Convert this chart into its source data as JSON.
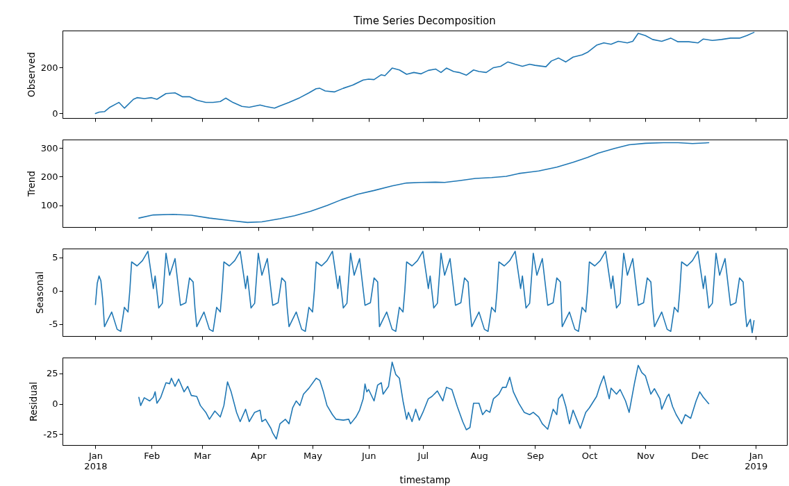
{
  "chart_data": [
    {
      "type": "line",
      "title": "Time Series Decomposition",
      "ylabel": "Observed",
      "tick_labels": "y",
      "xlim": [
        "2017-12-13T19:12",
        "2019-01-18T04:48"
      ],
      "xticks": [
        {
          "value": "2018-01-01",
          "label": null
        },
        {
          "value": "2018-02-01",
          "label": null
        },
        {
          "value": "2018-03-01",
          "label": null
        },
        {
          "value": "2018-04-01",
          "label": null
        },
        {
          "value": "2018-05-01",
          "label": null
        },
        {
          "value": "2018-06-01",
          "label": null
        },
        {
          "value": "2018-07-01",
          "label": null
        },
        {
          "value": "2018-08-01",
          "label": null
        },
        {
          "value": "2018-09-01",
          "label": null
        },
        {
          "value": "2018-10-01",
          "label": null
        },
        {
          "value": "2018-11-01",
          "label": null
        },
        {
          "value": "2018-12-01",
          "label": null
        },
        {
          "value": "2019-01-01",
          "label": null
        }
      ],
      "ylim": [
        -20,
        362
      ],
      "yticks": [
        0,
        200
      ],
      "x": [
        "2018-01-01",
        "2018-01-03",
        "2018-01-06",
        "2018-01-09",
        "2018-01-13",
        "2018-01-14",
        "2018-01-17",
        "2018-01-22",
        "2018-01-24",
        "2018-01-28",
        "2018-02-01",
        "2018-02-04",
        "2018-02-09",
        "2018-02-14",
        "2018-02-18",
        "2018-02-22",
        "2018-02-26",
        "2018-03-03",
        "2018-03-07",
        "2018-03-11",
        "2018-03-14",
        "2018-03-18",
        "2018-03-23",
        "2018-03-27",
        "2018-04-02",
        "2018-04-05",
        "2018-04-10",
        "2018-04-13",
        "2018-04-18",
        "2018-04-24",
        "2018-04-29",
        "2018-05-03",
        "2018-05-05",
        "2018-05-08",
        "2018-05-13",
        "2018-05-18",
        "2018-05-23",
        "2018-05-29",
        "2018-06-01",
        "2018-06-04",
        "2018-06-08",
        "2018-06-10",
        "2018-06-14",
        "2018-06-18",
        "2018-06-22",
        "2018-06-26",
        "2018-06-30",
        "2018-07-04",
        "2018-07-08",
        "2018-07-11",
        "2018-07-14",
        "2018-07-18",
        "2018-07-21",
        "2018-07-25",
        "2018-07-29",
        "2018-08-01",
        "2018-08-05",
        "2018-08-09",
        "2018-08-13",
        "2018-08-17",
        "2018-08-21",
        "2018-08-25",
        "2018-08-29",
        "2018-09-01",
        "2018-09-07",
        "2018-09-10",
        "2018-09-14",
        "2018-09-18",
        "2018-09-22",
        "2018-09-27",
        "2018-09-30",
        "2018-10-05",
        "2018-10-09",
        "2018-10-13",
        "2018-10-17",
        "2018-10-22",
        "2018-10-25",
        "2018-10-28",
        "2018-11-01",
        "2018-11-05",
        "2018-11-10",
        "2018-11-15",
        "2018-11-19",
        "2018-11-25",
        "2018-11-30",
        "2018-12-03",
        "2018-12-08",
        "2018-12-13",
        "2018-12-18",
        "2018-12-23",
        "2018-12-27",
        "2018-12-31"
      ],
      "series": [
        {
          "color": "#1f77b4",
          "values": [
            0,
            6,
            8,
            27,
            44,
            48,
            23,
            62,
            69,
            65,
            69,
            62,
            87,
            90,
            73,
            73,
            58,
            48,
            48,
            52,
            67,
            48,
            31,
            27,
            37,
            31,
            23,
            33,
            48,
            69,
            90,
            108,
            110,
            98,
            94,
            110,
            123,
            146,
            150,
            148,
            169,
            165,
            198,
            190,
            171,
            179,
            173,
            188,
            194,
            179,
            198,
            183,
            179,
            167,
            190,
            183,
            179,
            200,
            206,
            225,
            215,
            206,
            215,
            210,
            204,
            229,
            242,
            225,
            246,
            256,
            267,
            298,
            308,
            302,
            315,
            308,
            315,
            350,
            340,
            323,
            315,
            329,
            313,
            313,
            308,
            325,
            319,
            323,
            329,
            329,
            340,
            354
          ]
        }
      ]
    },
    {
      "type": "line",
      "ylabel": "Trend",
      "tick_labels": "y",
      "xlim": [
        "2017-12-13T19:12",
        "2019-01-18T04:48"
      ],
      "xticks": [
        {
          "value": "2018-01-01",
          "label": null
        },
        {
          "value": "2018-02-01",
          "label": null
        },
        {
          "value": "2018-03-01",
          "label": null
        },
        {
          "value": "2018-04-01",
          "label": null
        },
        {
          "value": "2018-05-01",
          "label": null
        },
        {
          "value": "2018-06-01",
          "label": null
        },
        {
          "value": "2018-07-01",
          "label": null
        },
        {
          "value": "2018-08-01",
          "label": null
        },
        {
          "value": "2018-09-01",
          "label": null
        },
        {
          "value": "2018-10-01",
          "label": null
        },
        {
          "value": "2018-11-01",
          "label": null
        },
        {
          "value": "2018-12-01",
          "label": null
        },
        {
          "value": "2019-01-01",
          "label": null
        }
      ],
      "ylim": [
        25,
        329
      ],
      "yticks": [
        100,
        200,
        300
      ],
      "x": [
        "2018-01-25",
        "2018-02-02",
        "2018-02-13",
        "2018-02-23",
        "2018-03-05",
        "2018-03-16",
        "2018-03-26",
        "2018-04-03",
        "2018-04-13",
        "2018-04-21",
        "2018-04-30",
        "2018-05-09",
        "2018-05-17",
        "2018-05-26",
        "2018-06-04",
        "2018-06-14",
        "2018-06-22",
        "2018-06-30",
        "2018-07-08",
        "2018-07-13",
        "2018-07-21",
        "2018-07-30",
        "2018-08-08",
        "2018-08-16",
        "2018-08-23",
        "2018-09-03",
        "2018-09-13",
        "2018-09-22",
        "2018-09-30",
        "2018-10-06",
        "2018-10-15",
        "2018-10-23",
        "2018-11-01",
        "2018-11-11",
        "2018-11-19",
        "2018-11-27",
        "2018-12-06"
      ],
      "series": [
        {
          "color": "#1f77b4",
          "values": [
            56,
            67,
            69,
            66,
            56,
            48,
            41,
            43,
            54,
            64,
            80,
            100,
            120,
            139,
            152,
            168,
            178,
            180,
            181,
            180,
            186,
            194,
            197,
            201,
            211,
            220,
            233,
            250,
            267,
            282,
            298,
            311,
            316,
            318,
            318,
            315,
            318
          ]
        }
      ]
    },
    {
      "type": "line",
      "ylabel": "Seasonal",
      "tick_labels": "y",
      "xlim": [
        "2017-12-13T19:12",
        "2019-01-18T04:48"
      ],
      "xticks": [
        {
          "value": "2018-01-01",
          "label": null
        },
        {
          "value": "2018-02-01",
          "label": null
        },
        {
          "value": "2018-03-01",
          "label": null
        },
        {
          "value": "2018-04-01",
          "label": null
        },
        {
          "value": "2018-05-01",
          "label": null
        },
        {
          "value": "2018-06-01",
          "label": null
        },
        {
          "value": "2018-07-01",
          "label": null
        },
        {
          "value": "2018-08-01",
          "label": null
        },
        {
          "value": "2018-09-01",
          "label": null
        },
        {
          "value": "2018-10-01",
          "label": null
        },
        {
          "value": "2018-11-01",
          "label": null
        },
        {
          "value": "2018-12-01",
          "label": null
        },
        {
          "value": "2019-01-01",
          "label": null
        }
      ],
      "ylim": [
        -6.8,
        6.3
      ],
      "yticks": [
        -5,
        0,
        5
      ],
      "x": [
        "2018-01-01",
        "2018-01-02",
        "2018-01-03",
        "2018-01-04",
        "2018-01-05",
        "2018-01-06",
        "2018-01-08",
        "2018-01-10",
        "2018-01-13",
        "2018-01-15",
        "2018-01-17",
        "2018-01-19",
        "2018-01-20",
        "2018-01-21",
        "2018-01-24",
        "2018-01-27",
        "2018-01-30",
        "2018-02-02",
        "2018-02-03",
        "2018-02-05",
        "2018-02-07",
        "2018-02-09",
        "2018-02-11",
        "2018-02-14",
        "2018-02-17",
        "2018-02-20",
        "2018-02-22",
        "2018-02-24",
        "2018-02-25",
        "2018-02-26",
        "2018-02-28",
        "2018-03-02",
        "2018-03-05",
        "2018-03-07",
        "2018-03-09",
        "2018-03-11",
        "2018-03-12",
        "2018-03-13",
        "2018-03-16",
        "2018-03-19",
        "2018-03-22",
        "2018-03-25",
        "2018-03-26",
        "2018-03-28",
        "2018-03-30",
        "2018-04-01",
        "2018-04-03",
        "2018-04-06",
        "2018-04-09",
        "2018-04-12",
        "2018-04-14",
        "2018-04-16",
        "2018-04-17",
        "2018-04-18",
        "2018-04-20",
        "2018-04-22",
        "2018-04-25",
        "2018-04-27",
        "2018-04-29",
        "2018-05-01",
        "2018-05-02",
        "2018-05-03",
        "2018-05-06",
        "2018-05-09",
        "2018-05-12",
        "2018-05-15",
        "2018-05-16",
        "2018-05-18",
        "2018-05-20",
        "2018-05-22",
        "2018-05-24",
        "2018-05-27",
        "2018-05-30",
        "2018-06-02",
        "2018-06-04",
        "2018-06-06",
        "2018-06-07",
        "2018-06-09",
        "2018-06-11",
        "2018-06-14",
        "2018-06-16",
        "2018-06-18",
        "2018-06-20",
        "2018-06-21",
        "2018-06-22",
        "2018-06-25",
        "2018-06-28",
        "2018-07-01",
        "2018-07-04",
        "2018-07-05",
        "2018-07-07",
        "2018-07-09",
        "2018-07-11",
        "2018-07-13",
        "2018-07-16",
        "2018-07-19",
        "2018-07-22",
        "2018-07-24",
        "2018-07-26",
        "2018-07-27",
        "2018-07-28",
        "2018-07-30",
        "2018-08-01",
        "2018-08-04",
        "2018-08-06",
        "2018-08-08",
        "2018-08-10",
        "2018-08-11",
        "2018-08-12",
        "2018-08-15",
        "2018-08-18",
        "2018-08-21",
        "2018-08-24",
        "2018-08-25",
        "2018-08-27",
        "2018-08-29",
        "2018-08-31",
        "2018-09-02",
        "2018-09-05",
        "2018-09-08",
        "2018-09-11",
        "2018-09-13",
        "2018-09-15",
        "2018-09-16",
        "2018-09-18",
        "2018-09-20",
        "2018-09-23",
        "2018-09-25",
        "2018-09-27",
        "2018-09-29",
        "2018-09-30",
        "2018-10-01",
        "2018-10-04",
        "2018-10-07",
        "2018-10-10",
        "2018-10-13",
        "2018-10-14",
        "2018-10-16",
        "2018-10-18",
        "2018-10-20",
        "2018-10-22",
        "2018-10-25",
        "2018-10-28",
        "2018-10-31",
        "2018-11-02",
        "2018-11-04",
        "2018-11-05",
        "2018-11-06",
        "2018-11-08",
        "2018-11-10",
        "2018-11-13",
        "2018-11-15",
        "2018-11-17",
        "2018-11-19",
        "2018-11-20",
        "2018-11-21",
        "2018-11-24",
        "2018-11-27",
        "2018-11-30",
        "2018-12-03",
        "2018-12-04",
        "2018-12-06",
        "2018-12-08",
        "2018-12-10",
        "2018-12-12",
        "2018-12-15",
        "2018-12-18",
        "2018-12-21",
        "2018-12-23",
        "2018-12-25",
        "2018-12-26",
        "2018-12-27",
        "2018-12-29",
        "2018-12-30",
        "2018-12-31"
      ],
      "series": [
        {
          "color": "#1f77b4",
          "values": [
            -2.1,
            1.1,
            2.2,
            1.5,
            -1.2,
            -5.4,
            -4.3,
            -3.2,
            -5.8,
            -6.1,
            -2.5,
            -3.2,
            0.0,
            4.3,
            3.7,
            4.5,
            5.9,
            0.3,
            2.2,
            -2.6,
            -1.9,
            5.6,
            2.3,
            4.8,
            -2.2,
            -1.8,
            1.9,
            1.3,
            -2.6,
            -5.4,
            -4.3,
            -3.2,
            -5.8,
            -6.1,
            -2.5,
            -3.2,
            0.0,
            4.3,
            3.7,
            4.5,
            5.9,
            0.3,
            2.2,
            -2.6,
            -1.9,
            5.6,
            2.3,
            4.8,
            -2.2,
            -1.8,
            1.9,
            1.3,
            -2.6,
            -5.4,
            -4.3,
            -3.2,
            -5.8,
            -6.1,
            -2.5,
            -3.2,
            0.0,
            4.3,
            3.7,
            4.5,
            5.9,
            0.3,
            2.2,
            -2.6,
            -1.9,
            5.6,
            2.3,
            4.8,
            -2.2,
            -1.8,
            1.9,
            1.3,
            -5.4,
            -4.3,
            -3.2,
            -5.8,
            -6.1,
            -2.5,
            -3.2,
            0.0,
            4.3,
            3.7,
            4.5,
            5.9,
            0.3,
            2.2,
            -2.6,
            -1.9,
            5.6,
            2.3,
            4.8,
            -2.2,
            -1.8,
            1.9,
            1.3,
            -2.6,
            -5.4,
            -4.3,
            -3.2,
            -5.8,
            -6.1,
            -2.5,
            -3.2,
            0.0,
            4.3,
            3.7,
            4.5,
            5.9,
            0.3,
            2.2,
            -2.6,
            -1.9,
            5.6,
            2.3,
            4.8,
            -2.2,
            -1.8,
            1.9,
            1.3,
            -5.4,
            -4.3,
            -3.2,
            -5.8,
            -6.1,
            -2.5,
            -3.2,
            0.0,
            4.3,
            3.7,
            4.5,
            5.9,
            0.3,
            2.2,
            -2.6,
            -1.9,
            5.6,
            2.3,
            4.8,
            -2.2,
            -1.8,
            1.9,
            1.3,
            -2.6,
            -5.4,
            -4.3,
            -3.2,
            -5.8,
            -6.1,
            -2.5,
            -3.2,
            0.0,
            4.3,
            3.7,
            4.5,
            5.9,
            0.3,
            2.2,
            -2.6,
            -1.9,
            5.6,
            2.3,
            4.8,
            -2.2,
            -1.8,
            1.9,
            1.3,
            -2.6,
            -5.4,
            -4.3,
            -6.3,
            -4.5
          ]
        }
      ]
    },
    {
      "type": "line",
      "ylabel": "Residual",
      "xlabel": "timestamp",
      "xlim": [
        "2017-12-13T19:12",
        "2019-01-18T04:48"
      ],
      "xticks": [
        {
          "value": "2018-01-01",
          "label": "Jan\n2018"
        },
        {
          "value": "2018-02-01",
          "label": "Feb"
        },
        {
          "value": "2018-03-01",
          "label": "Mar"
        },
        {
          "value": "2018-04-01",
          "label": "Apr"
        },
        {
          "value": "2018-05-01",
          "label": "May"
        },
        {
          "value": "2018-06-01",
          "label": "Jun"
        },
        {
          "value": "2018-07-01",
          "label": "Jul"
        },
        {
          "value": "2018-08-01",
          "label": "Aug"
        },
        {
          "value": "2018-09-01",
          "label": "Sep"
        },
        {
          "value": "2018-10-01",
          "label": "Oct"
        },
        {
          "value": "2018-11-01",
          "label": "Nov"
        },
        {
          "value": "2018-12-01",
          "label": "Dec"
        },
        {
          "value": "2019-01-01",
          "label": "Jan\n2019"
        }
      ],
      "ylim": [
        -34,
        38
      ],
      "yticks": [
        -25,
        0,
        25
      ],
      "x": [
        "2018-01-25",
        "2018-01-26",
        "2018-01-28",
        "2018-01-31",
        "2018-02-02",
        "2018-02-03",
        "2018-02-04",
        "2018-02-06",
        "2018-02-09",
        "2018-02-11",
        "2018-02-12",
        "2018-02-14",
        "2018-02-16",
        "2018-02-19",
        "2018-02-21",
        "2018-02-23",
        "2018-02-26",
        "2018-02-28",
        "2018-03-03",
        "2018-03-05",
        "2018-03-08",
        "2018-03-11",
        "2018-03-13",
        "2018-03-15",
        "2018-03-17",
        "2018-03-20",
        "2018-03-22",
        "2018-03-25",
        "2018-03-27",
        "2018-03-30",
        "2018-04-02",
        "2018-04-03",
        "2018-04-05",
        "2018-04-08",
        "2018-04-09",
        "2018-04-11",
        "2018-04-13",
        "2018-04-16",
        "2018-04-18",
        "2018-04-20",
        "2018-04-22",
        "2018-04-24",
        "2018-04-26",
        "2018-04-29",
        "2018-05-03",
        "2018-05-05",
        "2018-05-07",
        "2018-05-09",
        "2018-05-12",
        "2018-05-14",
        "2018-05-18",
        "2018-05-21",
        "2018-05-22",
        "2018-05-25",
        "2018-05-27",
        "2018-05-29",
        "2018-05-30",
        "2018-05-31",
        "2018-06-01",
        "2018-06-04",
        "2018-06-06",
        "2018-06-08",
        "2018-06-09",
        "2018-06-12",
        "2018-06-14",
        "2018-06-16",
        "2018-06-18",
        "2018-06-20",
        "2018-06-22",
        "2018-06-23",
        "2018-06-25",
        "2018-06-27",
        "2018-06-29",
        "2018-07-01",
        "2018-07-04",
        "2018-07-06",
        "2018-07-09",
        "2018-07-12",
        "2018-07-14",
        "2018-07-17",
        "2018-07-20",
        "2018-07-23",
        "2018-07-25",
        "2018-07-27",
        "2018-07-29",
        "2018-08-01",
        "2018-08-03",
        "2018-08-05",
        "2018-08-07",
        "2018-08-09",
        "2018-08-12",
        "2018-08-14",
        "2018-08-16",
        "2018-08-18",
        "2018-08-20",
        "2018-08-23",
        "2018-08-26",
        "2018-08-29",
        "2018-08-31",
        "2018-09-03",
        "2018-09-05",
        "2018-09-08",
        "2018-09-11",
        "2018-09-13",
        "2018-09-14",
        "2018-09-16",
        "2018-09-18",
        "2018-09-20",
        "2018-09-22",
        "2018-09-25",
        "2018-09-26",
        "2018-09-29",
        "2018-10-01",
        "2018-10-05",
        "2018-10-07",
        "2018-10-09",
        "2018-10-12",
        "2018-10-13",
        "2018-10-16",
        "2018-10-18",
        "2018-10-21",
        "2018-10-23",
        "2018-10-26",
        "2018-10-28",
        "2018-10-30",
        "2018-11-01",
        "2018-11-04",
        "2018-11-06",
        "2018-11-09",
        "2018-11-10",
        "2018-11-13",
        "2018-11-14",
        "2018-11-16",
        "2018-11-18",
        "2018-11-21",
        "2018-11-23",
        "2018-11-26",
        "2018-11-29",
        "2018-12-01",
        "2018-12-03",
        "2018-12-06"
      ],
      "series": [
        {
          "color": "#1f77b4",
          "values": [
            5.3,
            -1.5,
            4.9,
            2.3,
            5.3,
            9.8,
            0.4,
            4.9,
            17.3,
            16.5,
            21,
            14.3,
            20.3,
            9.8,
            14.3,
            6.8,
            6.0,
            -1.5,
            -7.1,
            -12.8,
            -6.0,
            -10.9,
            -1.5,
            18,
            9.8,
            -7.1,
            -14.7,
            -4.5,
            -14.7,
            -7.1,
            -5.3,
            -14.7,
            -12.8,
            -20.3,
            -24.1,
            -29,
            -16.5,
            -12.8,
            -16.5,
            -3.4,
            2.3,
            -1.5,
            7.9,
            12.8,
            21,
            19.2,
            9.8,
            -1.5,
            -9,
            -12.8,
            -13.5,
            -12.8,
            -16.5,
            -10.9,
            -5.3,
            4.1,
            16.2,
            9.8,
            11.7,
            2.3,
            15.4,
            17.3,
            7.9,
            14.3,
            34.2,
            24.1,
            21,
            2.3,
            -12.8,
            -7.1,
            -14.7,
            -4.5,
            -13.5,
            -7.1,
            4.1,
            6.0,
            10.5,
            2.3,
            13.5,
            11.7,
            -2.3,
            -14.7,
            -21.4,
            -19.6,
            0.4,
            0.4,
            -9,
            -5.3,
            -7.1,
            4.1,
            7.9,
            13.5,
            13.5,
            21.8,
            9.8,
            0.4,
            -7.1,
            -9,
            -7.1,
            -10.9,
            -16.5,
            -21,
            -4.5,
            -9,
            4.1,
            7.9,
            -2.3,
            -16.5,
            -5.3,
            -16.5,
            -20.3,
            -7.1,
            -3.4,
            6.0,
            15.4,
            22.9,
            4.1,
            12.8,
            7.9,
            11.7,
            2.3,
            -7.1,
            17.3,
            31.6,
            25.6,
            22.9,
            7.9,
            12.4,
            4.1,
            -4.5,
            6.0,
            7.9,
            -2.3,
            -9,
            -16.5,
            -9,
            -12,
            2.3,
            9.8,
            5.3,
            0
          ]
        }
      ]
    }
  ]
}
